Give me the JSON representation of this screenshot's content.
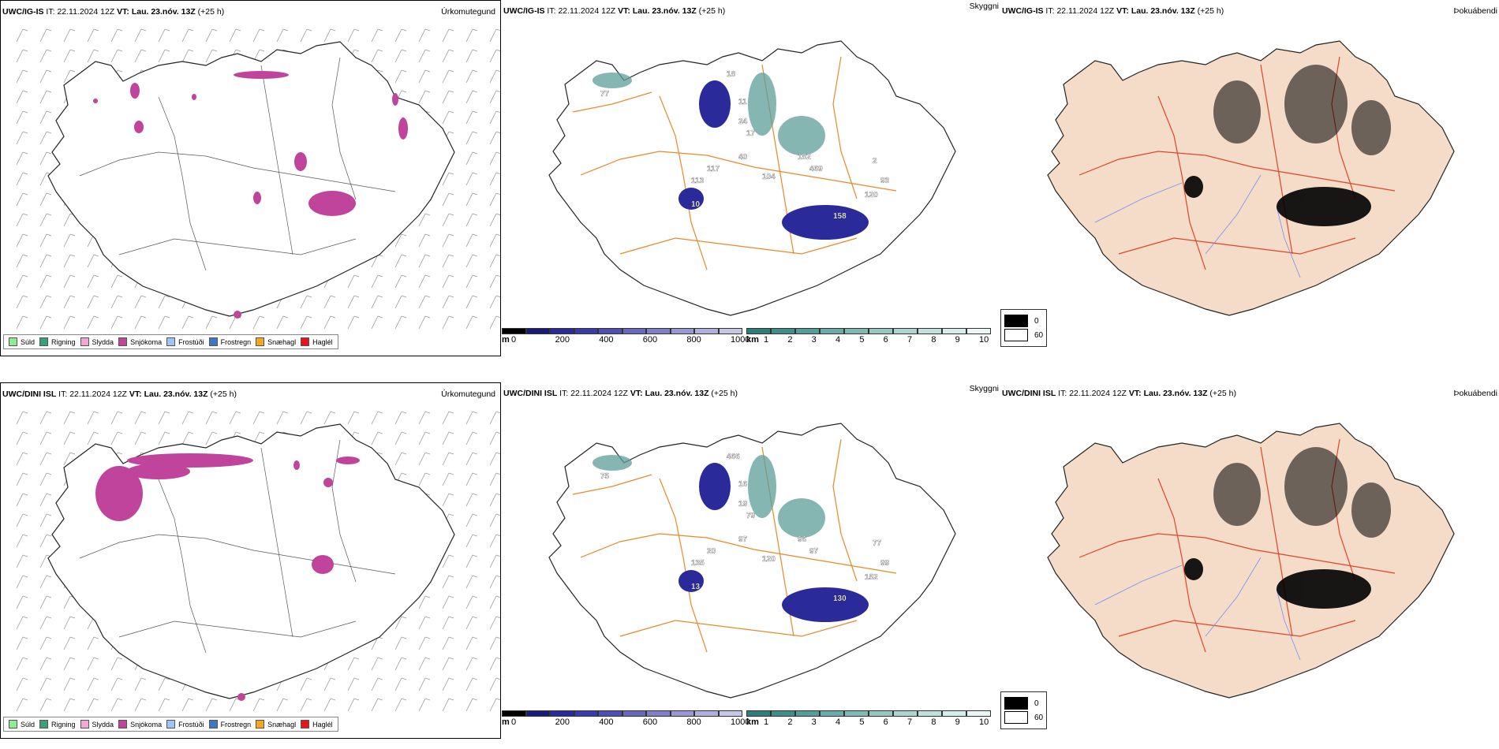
{
  "rows": [
    {
      "model": "UWC/IG-IS",
      "it_label": "IT:",
      "it_value": "22.11.2024 12Z",
      "vt_label": "VT:",
      "vt_value": "Lau. 23.nóv. 13Z",
      "lead": "(+25 h)"
    },
    {
      "model": "UWC/DINI ISL",
      "it_label": "IT:",
      "it_value": "22.11.2024 12Z",
      "vt_label": "VT:",
      "vt_value": "Lau. 23.nóv. 13Z",
      "lead": "(+25 h)"
    }
  ],
  "panel_titles": {
    "precip_type": "Úrkomutegund",
    "clouds": "Skyggni",
    "fog": "Þokuábendi"
  },
  "precip_legend": [
    {
      "label": "Súld",
      "color": "#90ee90"
    },
    {
      "label": "Rigning",
      "color": "#3aa07a"
    },
    {
      "label": "Slydda",
      "color": "#f4a6d7"
    },
    {
      "label": "Snjókoma",
      "color": "#c0449c"
    },
    {
      "label": "Frostúði",
      "color": "#9fc5f8"
    },
    {
      "label": "Frostregn",
      "color": "#3d78c8"
    },
    {
      "label": "Snæhagl",
      "color": "#f5a623"
    },
    {
      "label": "Haglél",
      "color": "#e8141c"
    }
  ],
  "cloud_bar": {
    "unit": "m",
    "ticks": [
      "0",
      "200",
      "400",
      "600",
      "800",
      "1000"
    ],
    "colors": [
      "#000000",
      "#1a1a7a",
      "#2a2a9a",
      "#3a3aaa",
      "#5050b4",
      "#6868be",
      "#8080c8",
      "#9898d2",
      "#b0b0dc",
      "#c8c8e6"
    ]
  },
  "vis_bar": {
    "unit": "km",
    "ticks": [
      "1",
      "2",
      "3",
      "4",
      "5",
      "6",
      "7",
      "8",
      "9",
      "10"
    ],
    "colors": [
      "#2e7f7a",
      "#3f8f89",
      "#549e98",
      "#6aaca7",
      "#80bab5",
      "#96c7c3",
      "#acd4d1",
      "#c2e1de",
      "#d7edeb",
      "#ebf6f5"
    ]
  },
  "fog_legend": [
    {
      "label": "0",
      "color": "#000000"
    },
    {
      "label": "60",
      "color": "#ffffff"
    }
  ],
  "cloud_labels": [
    [
      "77",
      "18",
      "117",
      "40",
      "113",
      "104",
      "469",
      "182",
      "93",
      "120",
      "158",
      "11",
      "24",
      "17",
      "10",
      "2"
    ],
    [
      "75",
      "466",
      "20",
      "97",
      "135",
      "120",
      "97",
      "96",
      "99",
      "152",
      "130",
      "16",
      "19",
      "79",
      "13",
      "77"
    ]
  ]
}
